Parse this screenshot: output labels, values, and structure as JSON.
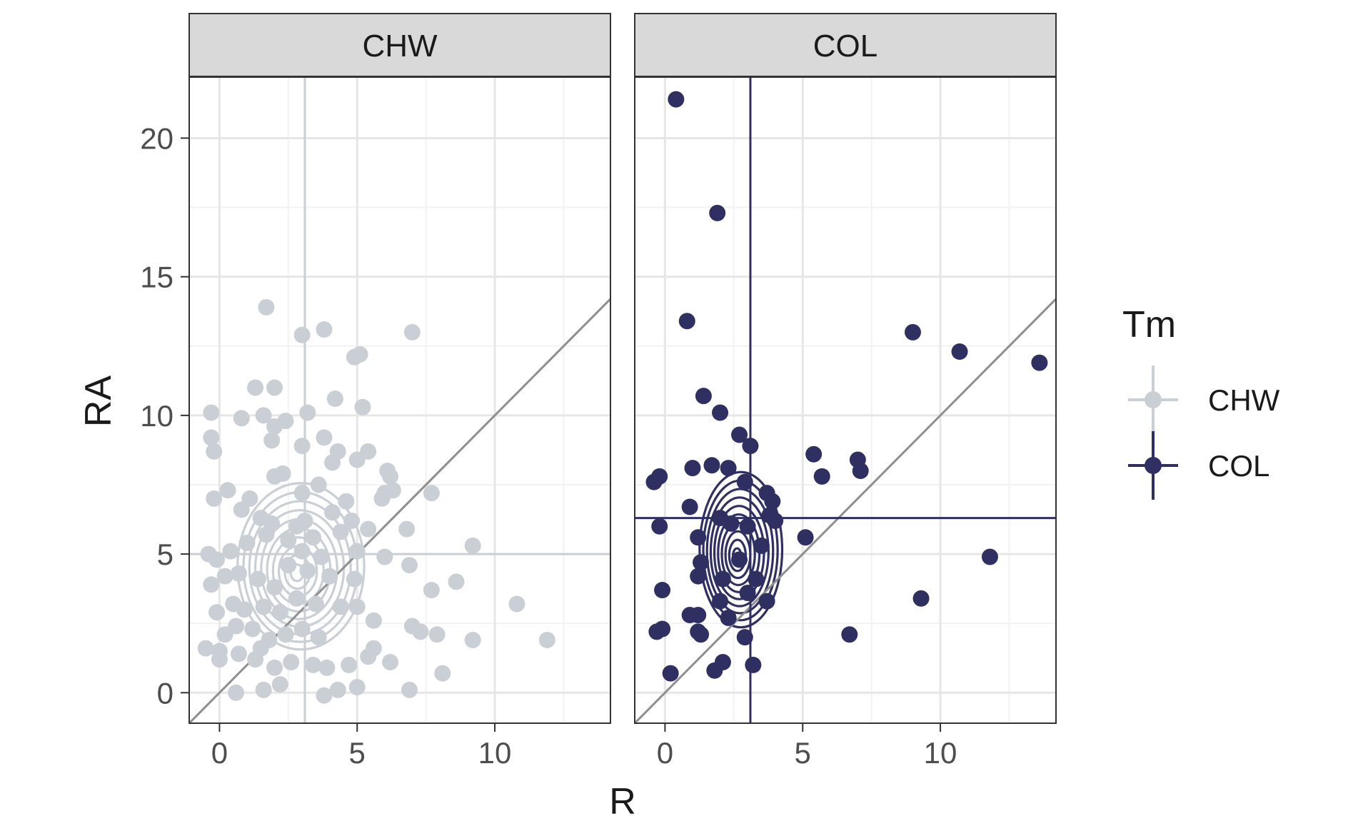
{
  "chart_data": {
    "type": "scatter",
    "xlabel": "R",
    "ylabel": "RA",
    "xlim": [
      -1.1,
      14.2
    ],
    "ylim": [
      -1.1,
      22.2
    ],
    "x_ticks": [
      0,
      5,
      10
    ],
    "y_ticks": [
      0,
      5,
      10,
      15,
      20
    ],
    "legend": {
      "title": "Tm",
      "position": "right",
      "entries": [
        {
          "label": "CHW",
          "color": "#c9cfd4"
        },
        {
          "label": "COL",
          "color": "#2f2f62"
        }
      ]
    },
    "identity_line": {
      "slope": 1,
      "intercept": 0,
      "color": "#8f8f8f"
    },
    "facets": [
      {
        "name": "CHW",
        "color": "#c9cfd4",
        "vline_x": 3.1,
        "hline_y": 5.0,
        "contour_center": [
          2.8,
          4.3
        ],
        "contour_spread": [
          2.3,
          3.0
        ],
        "contour_levels": 10,
        "points": [
          [
            1.7,
            13.9
          ],
          [
            3.8,
            13.1
          ],
          [
            3.0,
            12.9
          ],
          [
            7.0,
            13.0
          ],
          [
            4.9,
            12.1
          ],
          [
            5.1,
            12.2
          ],
          [
            1.3,
            11.0
          ],
          [
            2.0,
            11.0
          ],
          [
            -0.3,
            10.1
          ],
          [
            0.8,
            9.9
          ],
          [
            1.6,
            10.0
          ],
          [
            2.0,
            9.6
          ],
          [
            2.4,
            9.8
          ],
          [
            3.2,
            10.1
          ],
          [
            4.2,
            10.6
          ],
          [
            5.2,
            10.3
          ],
          [
            -0.3,
            9.2
          ],
          [
            -0.2,
            8.7
          ],
          [
            1.9,
            9.1
          ],
          [
            3.0,
            8.9
          ],
          [
            3.8,
            9.2
          ],
          [
            4.1,
            8.3
          ],
          [
            4.3,
            8.7
          ],
          [
            5.0,
            8.4
          ],
          [
            5.4,
            8.7
          ],
          [
            6.1,
            8.0
          ],
          [
            6.2,
            7.8
          ],
          [
            -0.2,
            7.0
          ],
          [
            0.3,
            7.3
          ],
          [
            1.1,
            7.0
          ],
          [
            2.0,
            7.8
          ],
          [
            2.3,
            7.9
          ],
          [
            3.0,
            7.2
          ],
          [
            3.6,
            7.5
          ],
          [
            4.1,
            6.5
          ],
          [
            4.6,
            6.9
          ],
          [
            5.9,
            7.0
          ],
          [
            6.0,
            7.2
          ],
          [
            6.3,
            7.3
          ],
          [
            7.7,
            7.2
          ],
          [
            0.8,
            6.6
          ],
          [
            1.5,
            6.3
          ],
          [
            1.9,
            6.1
          ],
          [
            2.8,
            6.0
          ],
          [
            3.1,
            6.2
          ],
          [
            3.4,
            5.6
          ],
          [
            4.4,
            5.8
          ],
          [
            4.8,
            6.2
          ],
          [
            5.4,
            5.9
          ],
          [
            6.8,
            5.9
          ],
          [
            -0.4,
            5.0
          ],
          [
            -0.1,
            4.8
          ],
          [
            0.4,
            5.1
          ],
          [
            1.0,
            5.4
          ],
          [
            1.7,
            5.7
          ],
          [
            2.5,
            5.5
          ],
          [
            3.0,
            5.1
          ],
          [
            3.7,
            4.9
          ],
          [
            5.0,
            5.1
          ],
          [
            6.0,
            4.9
          ],
          [
            6.9,
            4.6
          ],
          [
            9.2,
            5.3
          ],
          [
            -0.3,
            3.9
          ],
          [
            0.2,
            4.2
          ],
          [
            0.7,
            4.3
          ],
          [
            1.4,
            4.1
          ],
          [
            2.0,
            3.8
          ],
          [
            2.5,
            4.6
          ],
          [
            3.2,
            4.4
          ],
          [
            4.0,
            4.2
          ],
          [
            4.9,
            4.1
          ],
          [
            7.7,
            3.7
          ],
          [
            8.6,
            4.0
          ],
          [
            -0.1,
            2.9
          ],
          [
            0.5,
            3.2
          ],
          [
            0.9,
            3.0
          ],
          [
            1.6,
            3.1
          ],
          [
            2.2,
            2.9
          ],
          [
            2.8,
            3.4
          ],
          [
            3.5,
            3.2
          ],
          [
            4.4,
            3.1
          ],
          [
            5.0,
            3.1
          ],
          [
            10.8,
            3.2
          ],
          [
            0.2,
            2.1
          ],
          [
            0.6,
            2.4
          ],
          [
            1.2,
            2.3
          ],
          [
            1.8,
            1.9
          ],
          [
            2.4,
            2.1
          ],
          [
            3.0,
            2.3
          ],
          [
            3.6,
            2.0
          ],
          [
            5.6,
            2.6
          ],
          [
            7.0,
            2.4
          ],
          [
            7.3,
            2.2
          ],
          [
            7.9,
            2.1
          ],
          [
            9.2,
            1.9
          ],
          [
            11.9,
            1.9
          ],
          [
            -0.5,
            1.6
          ],
          [
            0.0,
            1.5
          ],
          [
            0.7,
            1.4
          ],
          [
            1.3,
            1.2
          ],
          [
            2.0,
            0.9
          ],
          [
            2.6,
            1.1
          ],
          [
            3.4,
            1.0
          ],
          [
            3.9,
            0.9
          ],
          [
            4.7,
            1.0
          ],
          [
            5.4,
            1.3
          ],
          [
            5.6,
            1.6
          ],
          [
            6.2,
            1.1
          ],
          [
            0.0,
            1.2
          ],
          [
            1.5,
            1.6
          ],
          [
            2.2,
            0.3
          ],
          [
            0.6,
            0.0
          ],
          [
            1.6,
            0.1
          ],
          [
            3.8,
            -0.1
          ],
          [
            4.3,
            0.1
          ],
          [
            5.0,
            0.2
          ],
          [
            6.9,
            0.1
          ],
          [
            8.1,
            0.7
          ]
        ]
      },
      {
        "name": "COL",
        "color": "#2f2f62",
        "vline_x": 3.1,
        "hline_y": 6.3,
        "contour_center": [
          2.6,
          4.9
        ],
        "contour_spread": [
          1.5,
          2.8
        ],
        "contour_levels": 10,
        "points": [
          [
            0.4,
            21.4
          ],
          [
            1.9,
            17.3
          ],
          [
            0.8,
            13.4
          ],
          [
            9.0,
            13.0
          ],
          [
            10.7,
            12.3
          ],
          [
            13.6,
            11.9
          ],
          [
            1.4,
            10.7
          ],
          [
            2.0,
            10.1
          ],
          [
            2.7,
            9.3
          ],
          [
            3.1,
            8.9
          ],
          [
            5.4,
            8.6
          ],
          [
            7.0,
            8.4
          ],
          [
            7.1,
            8.0
          ],
          [
            5.7,
            7.8
          ],
          [
            -0.4,
            7.6
          ],
          [
            -0.2,
            7.8
          ],
          [
            1.0,
            8.1
          ],
          [
            1.7,
            8.2
          ],
          [
            2.3,
            8.1
          ],
          [
            2.9,
            7.6
          ],
          [
            3.7,
            7.2
          ],
          [
            3.9,
            6.9
          ],
          [
            0.9,
            6.7
          ],
          [
            2.0,
            6.3
          ],
          [
            2.4,
            6.1
          ],
          [
            3.0,
            6.0
          ],
          [
            3.8,
            6.4
          ],
          [
            4.0,
            6.2
          ],
          [
            5.1,
            5.6
          ],
          [
            -0.2,
            6.0
          ],
          [
            1.2,
            5.6
          ],
          [
            2.7,
            4.8
          ],
          [
            3.5,
            5.3
          ],
          [
            11.8,
            4.9
          ],
          [
            1.3,
            4.7
          ],
          [
            1.2,
            4.2
          ],
          [
            2.1,
            4.1
          ],
          [
            3.3,
            4.1
          ],
          [
            -0.1,
            3.7
          ],
          [
            3.7,
            3.3
          ],
          [
            9.3,
            3.4
          ],
          [
            2.0,
            3.3
          ],
          [
            0.9,
            2.8
          ],
          [
            1.2,
            2.8
          ],
          [
            2.3,
            2.7
          ],
          [
            3.0,
            3.6
          ],
          [
            -0.3,
            2.2
          ],
          [
            -0.1,
            2.3
          ],
          [
            1.2,
            2.2
          ],
          [
            1.3,
            2.1
          ],
          [
            2.9,
            2.0
          ],
          [
            6.7,
            2.1
          ],
          [
            0.2,
            0.7
          ],
          [
            1.8,
            0.8
          ],
          [
            2.1,
            1.1
          ],
          [
            3.2,
            1.0
          ]
        ]
      }
    ]
  }
}
